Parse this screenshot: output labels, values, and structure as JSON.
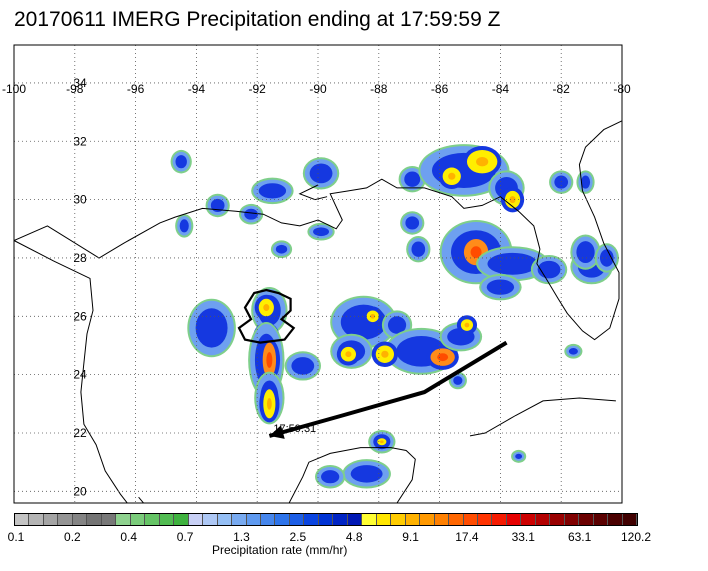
{
  "title": "20170611 IMERG Precipitation ending at 17:59:59 Z",
  "map": {
    "lon_range": [
      -100,
      -80
    ],
    "lat_range": [
      19.6,
      35.3
    ],
    "lon_ticks": [
      "-100",
      "-98",
      "-96",
      "-94",
      "-92",
      "-90",
      "-88",
      "-86",
      "-84",
      "-82",
      "-80"
    ],
    "lon_values": [
      -100,
      -98,
      -96,
      -94,
      -92,
      -90,
      -88,
      -86,
      -84,
      -82,
      -80
    ],
    "lat_ticks": [
      "20",
      "22",
      "24",
      "26",
      "28",
      "30",
      "32",
      "34"
    ],
    "lat_values": [
      20,
      22,
      24,
      26,
      28,
      30,
      32,
      34
    ],
    "grid": "dotted",
    "track": {
      "label": "17:59:31",
      "points": [
        [
          -83.8,
          25.1
        ],
        [
          -86.5,
          23.4
        ],
        [
          -89.2,
          22.6
        ],
        [
          -91.6,
          21.9
        ]
      ]
    }
  },
  "colorbar": {
    "title": "Precipitation rate (mm/hr)",
    "tick_labels": [
      "0.1",
      "0.2",
      "0.4",
      "0.7",
      "1.3",
      "2.5",
      "4.8",
      "9.1",
      "17.4",
      "33.1",
      "63.1",
      "120.2"
    ],
    "colors": [
      "#c4c4c4",
      "#b4b4b4",
      "#a4a4a4",
      "#949494",
      "#848484",
      "#747474",
      "#787878",
      "#8fd28f",
      "#7bcc7b",
      "#66c466",
      "#52bc52",
      "#3fb23f",
      "#c8d0f5",
      "#aec8f5",
      "#95bff5",
      "#78aaf0",
      "#5f9af0",
      "#4686ec",
      "#2e74ea",
      "#1c5ee6",
      "#0a44e0",
      "#0033d4",
      "#0024c4",
      "#0018b4",
      "#ffff33",
      "#ffe600",
      "#ffcc00",
      "#ffb200",
      "#ff9900",
      "#ff8000",
      "#ff6600",
      "#ff4c00",
      "#ff3300",
      "#f51a00",
      "#e60000",
      "#cc0000",
      "#b30000",
      "#990000",
      "#800000",
      "#6b0000",
      "#5a0000",
      "#4a0000",
      "#400000"
    ]
  },
  "features": {
    "clouds": [
      [
        -94.5,
        31.3,
        0.25,
        0.3,
        "blue"
      ],
      [
        -93.3,
        29.8,
        0.3,
        0.3,
        "blue"
      ],
      [
        -94.4,
        29.1,
        0.2,
        0.3,
        "blue"
      ],
      [
        -92.2,
        29.5,
        0.3,
        0.25,
        "blue"
      ],
      [
        -91.5,
        30.3,
        0.6,
        0.35,
        "blue"
      ],
      [
        -89.9,
        30.9,
        0.5,
        0.45,
        "blue"
      ],
      [
        -91.2,
        28.3,
        0.25,
        0.2,
        "blue"
      ],
      [
        -89.9,
        28.9,
        0.35,
        0.2,
        "blue"
      ],
      [
        -86.9,
        30.7,
        0.35,
        0.35,
        "blue"
      ],
      [
        -85.2,
        31.0,
        1.4,
        0.8,
        "blue"
      ],
      [
        -84.6,
        31.3,
        0.5,
        0.4,
        "yellow"
      ],
      [
        -85.6,
        30.8,
        0.3,
        0.3,
        "yellow"
      ],
      [
        -83.8,
        30.4,
        0.5,
        0.5,
        "blue"
      ],
      [
        -83.6,
        30.0,
        0.25,
        0.3,
        "yellow"
      ],
      [
        -82.0,
        30.6,
        0.3,
        0.3,
        "blue"
      ],
      [
        -81.2,
        30.6,
        0.2,
        0.3,
        "blue"
      ],
      [
        -84.8,
        28.2,
        1.1,
        1.0,
        "blue"
      ],
      [
        -84.8,
        28.2,
        0.4,
        0.45,
        "orange"
      ],
      [
        -83.6,
        27.8,
        1.1,
        0.5,
        "blue"
      ],
      [
        -84.0,
        27.0,
        0.6,
        0.35,
        "blue"
      ],
      [
        -82.4,
        27.6,
        0.5,
        0.4,
        "blue"
      ],
      [
        -81.0,
        27.7,
        0.6,
        0.5,
        "blue"
      ],
      [
        -86.7,
        28.3,
        0.3,
        0.35,
        "blue"
      ],
      [
        -86.9,
        29.2,
        0.3,
        0.3,
        "blue"
      ],
      [
        -93.5,
        25.6,
        0.7,
        0.9,
        "blue"
      ],
      [
        -91.6,
        26.2,
        0.5,
        0.7,
        "blue"
      ],
      [
        -91.7,
        26.3,
        0.25,
        0.3,
        "yellow"
      ],
      [
        -91.7,
        25.3,
        0.3,
        0.35,
        "yellow"
      ],
      [
        -91.7,
        24.5,
        0.5,
        1.2,
        "blue"
      ],
      [
        -91.6,
        24.5,
        0.22,
        0.6,
        "orange"
      ],
      [
        -91.6,
        23.2,
        0.4,
        0.8,
        "blue"
      ],
      [
        -91.6,
        23.0,
        0.2,
        0.5,
        "yellow"
      ],
      [
        -90.5,
        24.3,
        0.5,
        0.4,
        "blue"
      ],
      [
        -88.5,
        25.8,
        1.0,
        0.8,
        "blue"
      ],
      [
        -88.2,
        26.0,
        0.2,
        0.2,
        "yellow"
      ],
      [
        -87.4,
        25.7,
        0.4,
        0.4,
        "blue"
      ],
      [
        -88.9,
        24.8,
        0.6,
        0.5,
        "blue"
      ],
      [
        -89.0,
        24.7,
        0.25,
        0.25,
        "yellow"
      ],
      [
        -86.6,
        24.8,
        1.1,
        0.7,
        "blue"
      ],
      [
        -85.9,
        24.6,
        0.4,
        0.3,
        "orange"
      ],
      [
        -85.3,
        25.3,
        0.6,
        0.4,
        "blue"
      ],
      [
        -85.1,
        25.7,
        0.2,
        0.2,
        "yellow"
      ],
      [
        -87.8,
        24.7,
        0.3,
        0.3,
        "yellow"
      ],
      [
        -85.4,
        23.8,
        0.2,
        0.2,
        "blue"
      ],
      [
        -87.9,
        21.7,
        0.35,
        0.3,
        "blue"
      ],
      [
        -87.9,
        21.7,
        0.15,
        0.12,
        "yellow"
      ],
      [
        -88.4,
        20.6,
        0.7,
        0.4,
        "blue"
      ],
      [
        -89.6,
        20.5,
        0.4,
        0.3,
        "blue"
      ],
      [
        -81.2,
        28.2,
        0.4,
        0.5,
        "blue"
      ],
      [
        -80.5,
        28.0,
        0.3,
        0.4,
        "blue"
      ],
      [
        -83.4,
        21.2,
        0.15,
        0.12,
        "blue"
      ],
      [
        -81.6,
        24.8,
        0.2,
        0.15,
        "blue"
      ]
    ],
    "contour": [
      [
        -91.3,
        26.8
      ],
      [
        -90.9,
        26.6
      ],
      [
        -90.9,
        26.2
      ],
      [
        -91.2,
        25.9
      ],
      [
        -90.8,
        25.6
      ],
      [
        -91.1,
        25.2
      ],
      [
        -91.9,
        25.1
      ],
      [
        -92.4,
        25.2
      ],
      [
        -92.6,
        25.6
      ],
      [
        -92.2,
        25.9
      ],
      [
        -92.4,
        26.3
      ],
      [
        -92.1,
        26.8
      ],
      [
        -91.7,
        26.9
      ]
    ]
  }
}
